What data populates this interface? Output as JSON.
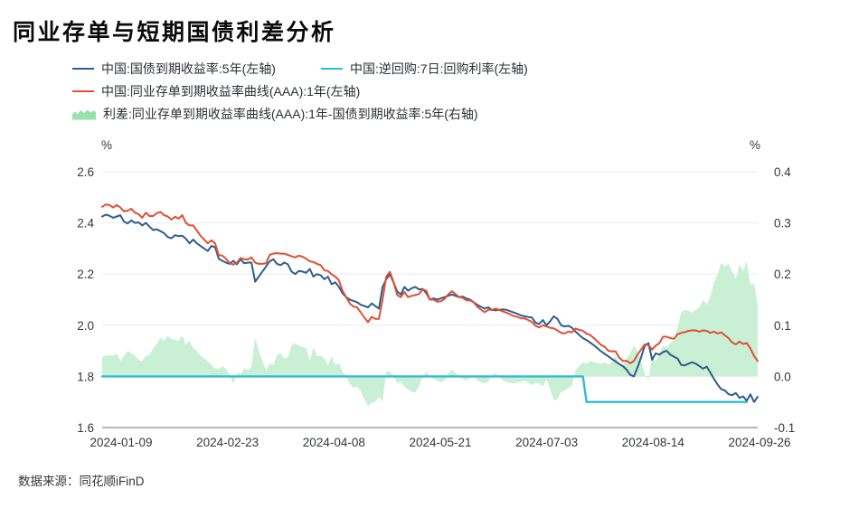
{
  "page": {
    "title": "同业存单与短期国债利差分析",
    "source_label": "数据来源：",
    "source_value": "同花顺iFinD"
  },
  "chart_data": {
    "type": "line",
    "title": "同业存单与短期国债利差分析",
    "grid": true,
    "legend_position": "top-left",
    "left_axis": {
      "unit": "%",
      "max": 2.6,
      "min": 1.6,
      "ticks": [
        "2.6",
        "2.4",
        "2.2",
        "2.0",
        "1.8",
        "1.6"
      ]
    },
    "right_axis": {
      "unit": "%",
      "max": 0.4,
      "min": -0.1,
      "ticks": [
        "0.4",
        "0.3",
        "0.2",
        "0.1",
        "0.0",
        "-0.1"
      ]
    },
    "x_labels": [
      "2024-01-09",
      "2024-02-23",
      "2024-04-08",
      "2024-05-21",
      "2024-07-03",
      "2024-08-14",
      "2024-09-26"
    ],
    "n_points": 181,
    "series": [
      {
        "id": "cgb_5y",
        "name": "中国:国债到期收益率:5年(左轴)",
        "axis": "left",
        "type": "line",
        "color": "#2e5e8a",
        "values": [
          2.425,
          2.432,
          2.428,
          2.42,
          2.425,
          2.43,
          2.405,
          2.398,
          2.41,
          2.4,
          2.402,
          2.39,
          2.4,
          2.385,
          2.372,
          2.375,
          2.368,
          2.36,
          2.345,
          2.34,
          2.352,
          2.348,
          2.35,
          2.338,
          2.32,
          2.335,
          2.32,
          2.31,
          2.3,
          2.29,
          2.31,
          2.305,
          2.26,
          2.252,
          2.245,
          2.24,
          2.252,
          2.238,
          2.258,
          2.242,
          2.245,
          2.245,
          2.17,
          2.19,
          2.21,
          2.23,
          2.25,
          2.258,
          2.24,
          2.235,
          2.245,
          2.238,
          2.21,
          2.2,
          2.212,
          2.21,
          2.205,
          2.22,
          2.19,
          2.2,
          2.195,
          2.18,
          2.19,
          2.16,
          2.168,
          2.15,
          2.125,
          2.11,
          2.1,
          2.095,
          2.09,
          2.08,
          2.075,
          2.07,
          2.085,
          2.075,
          2.065,
          2.15,
          2.18,
          2.199,
          2.168,
          2.132,
          2.12,
          2.15,
          2.135,
          2.145,
          2.15,
          2.14,
          2.142,
          2.125,
          2.1,
          2.105,
          2.1,
          2.105,
          2.11,
          2.115,
          2.12,
          2.115,
          2.11,
          2.112,
          2.105,
          2.1,
          2.09,
          2.08,
          2.072,
          2.065,
          2.07,
          2.06,
          2.058,
          2.06,
          2.062,
          2.06,
          2.055,
          2.05,
          2.045,
          2.038,
          2.035,
          2.032,
          2.03,
          2.01,
          2.005,
          2.02,
          2.0,
          2.015,
          2.035,
          2.025,
          2.0,
          1.995,
          1.998,
          1.99,
          1.975,
          1.962,
          1.95,
          1.942,
          1.932,
          1.922,
          1.91,
          1.898,
          1.888,
          1.878,
          1.868,
          1.858,
          1.848,
          1.84,
          1.826,
          1.806,
          1.8,
          1.835,
          1.875,
          1.92,
          1.93,
          1.865,
          1.89,
          1.885,
          1.895,
          1.9,
          1.885,
          1.877,
          1.87,
          1.845,
          1.843,
          1.85,
          1.855,
          1.85,
          1.84,
          1.83,
          1.838,
          1.815,
          1.79,
          1.768,
          1.75,
          1.745,
          1.73,
          1.727,
          1.735,
          1.716,
          1.722,
          1.705,
          1.73,
          1.7,
          1.72
        ]
      },
      {
        "id": "repo_7d",
        "name": "中国:逆回购:7日:回购利率(左轴)",
        "axis": "left",
        "type": "line",
        "color": "#30bcd3",
        "note": "1.8 until policy-rate cut, then 1.7",
        "values": [
          1.8,
          1.8,
          1.8,
          1.8,
          1.8,
          1.8,
          1.8,
          1.8,
          1.8,
          1.8,
          1.8,
          1.8,
          1.8,
          1.8,
          1.8,
          1.8,
          1.8,
          1.8,
          1.8,
          1.8,
          1.8,
          1.8,
          1.8,
          1.8,
          1.8,
          1.8,
          1.8,
          1.8,
          1.8,
          1.8,
          1.8,
          1.8,
          1.8,
          1.8,
          1.8,
          1.8,
          1.8,
          1.8,
          1.8,
          1.8,
          1.8,
          1.8,
          1.8,
          1.8,
          1.8,
          1.8,
          1.8,
          1.8,
          1.8,
          1.8,
          1.8,
          1.8,
          1.8,
          1.8,
          1.8,
          1.8,
          1.8,
          1.8,
          1.8,
          1.8,
          1.8,
          1.8,
          1.8,
          1.8,
          1.8,
          1.8,
          1.8,
          1.8,
          1.8,
          1.8,
          1.8,
          1.8,
          1.8,
          1.8,
          1.8,
          1.8,
          1.8,
          1.8,
          1.8,
          1.8,
          1.8,
          1.8,
          1.8,
          1.8,
          1.8,
          1.8,
          1.8,
          1.8,
          1.8,
          1.8,
          1.8,
          1.8,
          1.8,
          1.8,
          1.8,
          1.8,
          1.8,
          1.8,
          1.8,
          1.8,
          1.8,
          1.8,
          1.8,
          1.8,
          1.8,
          1.8,
          1.8,
          1.8,
          1.8,
          1.8,
          1.8,
          1.8,
          1.8,
          1.8,
          1.8,
          1.8,
          1.8,
          1.8,
          1.8,
          1.8,
          1.8,
          1.8,
          1.8,
          1.8,
          1.8,
          1.8,
          1.8,
          1.8,
          1.8,
          1.8,
          1.8,
          1.8,
          1.8,
          1.7,
          1.7,
          1.7,
          1.7,
          1.7,
          1.7,
          1.7,
          1.7,
          1.7,
          1.7,
          1.7,
          1.7,
          1.7,
          1.7,
          1.7,
          1.7,
          1.7,
          1.7,
          1.7,
          1.7,
          1.7,
          1.7,
          1.7,
          1.7,
          1.7,
          1.7,
          1.7,
          1.7,
          1.7,
          1.7,
          1.7,
          1.7,
          1.7,
          1.7,
          1.7,
          1.7,
          1.7,
          1.7,
          1.7,
          1.7,
          1.7,
          1.7,
          1.7,
          1.7,
          1.7,
          null,
          null,
          null
        ]
      },
      {
        "id": "ncd_aaa_1y",
        "name": "中国:同业存单到期收益率曲线(AAA):1年(左轴)",
        "axis": "left",
        "type": "line",
        "color": "#e04f35",
        "values": [
          2.463,
          2.472,
          2.47,
          2.46,
          2.47,
          2.46,
          2.445,
          2.448,
          2.455,
          2.44,
          2.434,
          2.42,
          2.44,
          2.427,
          2.427,
          2.438,
          2.443,
          2.43,
          2.425,
          2.413,
          2.424,
          2.417,
          2.43,
          2.4,
          2.39,
          2.39,
          2.37,
          2.35,
          2.335,
          2.32,
          2.332,
          2.32,
          2.274,
          2.272,
          2.26,
          2.243,
          2.237,
          2.245,
          2.263,
          2.258,
          2.257,
          2.265,
          2.245,
          2.24,
          2.24,
          2.242,
          2.275,
          2.28,
          2.282,
          2.28,
          2.28,
          2.275,
          2.27,
          2.265,
          2.272,
          2.268,
          2.26,
          2.25,
          2.247,
          2.24,
          2.235,
          2.215,
          2.212,
          2.199,
          2.19,
          2.176,
          2.135,
          2.11,
          2.085,
          2.073,
          2.07,
          2.05,
          2.03,
          2.012,
          2.033,
          2.025,
          2.025,
          2.1,
          2.19,
          2.209,
          2.17,
          2.118,
          2.11,
          2.13,
          2.11,
          2.115,
          2.118,
          2.122,
          2.14,
          2.135,
          2.1,
          2.1,
          2.092,
          2.094,
          2.102,
          2.12,
          2.133,
          2.122,
          2.11,
          2.107,
          2.097,
          2.097,
          2.09,
          2.072,
          2.061,
          2.051,
          2.06,
          2.06,
          2.065,
          2.06,
          2.054,
          2.049,
          2.043,
          2.036,
          2.033,
          2.027,
          2.027,
          2.02,
          2.013,
          1.998,
          1.991,
          2.0,
          1.995,
          1.99,
          1.988,
          1.98,
          1.97,
          1.968,
          1.975,
          1.972,
          1.987,
          1.982,
          1.978,
          1.967,
          1.962,
          1.95,
          1.936,
          1.923,
          1.916,
          1.9,
          1.898,
          1.898,
          1.873,
          1.86,
          1.861,
          1.851,
          1.86,
          1.885,
          1.905,
          1.925,
          1.922,
          1.905,
          1.92,
          1.93,
          1.955,
          1.955,
          1.95,
          1.947,
          1.965,
          1.97,
          1.973,
          1.978,
          1.98,
          1.98,
          1.975,
          1.98,
          1.978,
          1.97,
          1.975,
          1.968,
          1.972,
          1.96,
          1.95,
          1.932,
          1.925,
          1.936,
          1.927,
          1.93,
          1.91,
          1.88,
          1.86
        ]
      },
      {
        "id": "spread",
        "name": "利差:同业存单到期收益率曲线(AAA):1年-国债到期收益率:5年(右轴)",
        "axis": "right",
        "type": "area",
        "color": "#c9f0d4",
        "legend_color": "#9ae0ad",
        "computed": "ncd_aaa_1y - cgb_5y"
      }
    ]
  }
}
